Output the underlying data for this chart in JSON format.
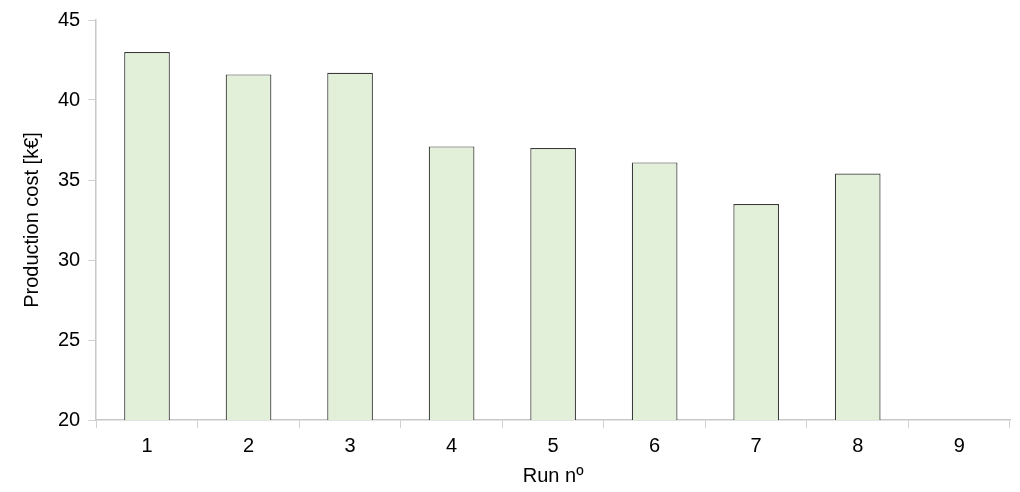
{
  "chart_data": {
    "type": "bar",
    "xlabel": "Run nº",
    "ylabel": "Production cost [k€]",
    "categories": [
      "1",
      "2",
      "3",
      "4",
      "5",
      "6",
      "7",
      "8",
      "9"
    ],
    "values": [
      43.0,
      41.6,
      41.7,
      37.1,
      37.0,
      36.1,
      33.5,
      35.4,
      null
    ],
    "color": "#e2efd9",
    "ylim": [
      20,
      45
    ],
    "yticks": [
      20,
      25,
      30,
      35,
      40,
      45
    ],
    "grid": false,
    "legend": false
  }
}
